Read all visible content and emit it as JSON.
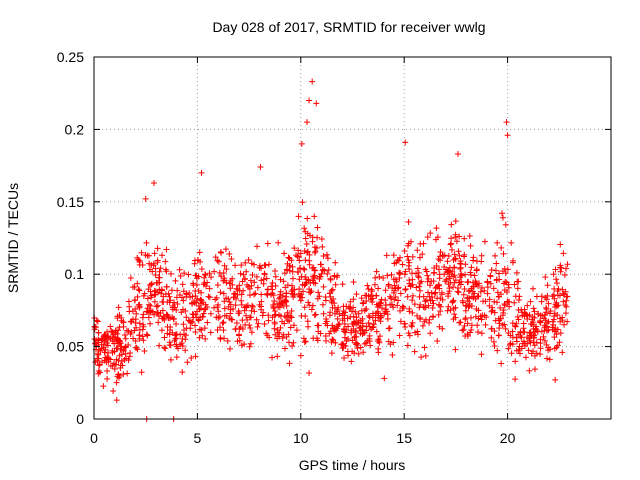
{
  "chart_data": {
    "type": "scatter",
    "title": "Day 028 of 2017, SRMTID for receiver wwlg",
    "xlabel": "GPS time / hours",
    "ylabel": "SRMTID / TECUs",
    "xlim": [
      0,
      25
    ],
    "ylim": [
      0,
      0.25
    ],
    "xticks": [
      0,
      5,
      10,
      15,
      20
    ],
    "yticks": [
      0,
      0.05,
      0.1,
      0.15,
      0.2,
      0.25
    ],
    "xtick_labels": [
      "0",
      "5",
      "10",
      "15",
      "20"
    ],
    "ytick_labels": [
      "0",
      "0.05",
      "0.1",
      "0.15",
      "0.2",
      "0.25"
    ],
    "grid": true,
    "marker": "plus",
    "series": [
      {
        "name": "SRMTID",
        "color": "#ff0000",
        "x_start": 0.0,
        "x_end": 22.9,
        "profile_hours": [
          0,
          0.5,
          1,
          1.5,
          2,
          2.5,
          3,
          3.5,
          4,
          4.5,
          5,
          5.5,
          6,
          6.5,
          7,
          7.5,
          8,
          8.5,
          9,
          9.5,
          10,
          10.5,
          11,
          11.5,
          12,
          12.5,
          13,
          13.5,
          14,
          14.5,
          15,
          15.5,
          16,
          16.5,
          17,
          17.5,
          18,
          18.5,
          19,
          19.5,
          20,
          20.5,
          21,
          21.5,
          22,
          22.5,
          22.9
        ],
        "profile_median": [
          0.055,
          0.048,
          0.05,
          0.052,
          0.075,
          0.085,
          0.09,
          0.075,
          0.07,
          0.07,
          0.08,
          0.085,
          0.08,
          0.08,
          0.078,
          0.08,
          0.085,
          0.085,
          0.08,
          0.08,
          0.095,
          0.1,
          0.09,
          0.075,
          0.065,
          0.065,
          0.068,
          0.07,
          0.075,
          0.085,
          0.09,
          0.09,
          0.085,
          0.09,
          0.095,
          0.1,
          0.095,
          0.085,
          0.08,
          0.085,
          0.09,
          0.065,
          0.06,
          0.06,
          0.07,
          0.08,
          0.085
        ],
        "profile_spread": [
          0.02,
          0.015,
          0.02,
          0.02,
          0.03,
          0.035,
          0.03,
          0.025,
          0.02,
          0.025,
          0.025,
          0.025,
          0.025,
          0.025,
          0.025,
          0.025,
          0.03,
          0.03,
          0.03,
          0.03,
          0.035,
          0.045,
          0.035,
          0.025,
          0.02,
          0.02,
          0.02,
          0.02,
          0.025,
          0.03,
          0.035,
          0.03,
          0.03,
          0.03,
          0.035,
          0.035,
          0.03,
          0.03,
          0.025,
          0.03,
          0.035,
          0.025,
          0.02,
          0.02,
          0.025,
          0.025,
          0.02
        ],
        "peaks": [
          {
            "x": 2.55,
            "y": 0.0
          },
          {
            "x": 3.85,
            "y": 0.0
          },
          {
            "x": 1.1,
            "y": 0.013
          },
          {
            "x": 2.5,
            "y": 0.152
          },
          {
            "x": 2.9,
            "y": 0.163
          },
          {
            "x": 5.2,
            "y": 0.17
          },
          {
            "x": 8.05,
            "y": 0.174
          },
          {
            "x": 10.05,
            "y": 0.19
          },
          {
            "x": 10.4,
            "y": 0.22
          },
          {
            "x": 10.55,
            "y": 0.233
          },
          {
            "x": 10.75,
            "y": 0.218
          },
          {
            "x": 10.3,
            "y": 0.205
          },
          {
            "x": 15.05,
            "y": 0.191
          },
          {
            "x": 17.6,
            "y": 0.183
          },
          {
            "x": 19.95,
            "y": 0.205
          },
          {
            "x": 20.0,
            "y": 0.196
          },
          {
            "x": 22.3,
            "y": 0.027
          }
        ]
      }
    ]
  }
}
